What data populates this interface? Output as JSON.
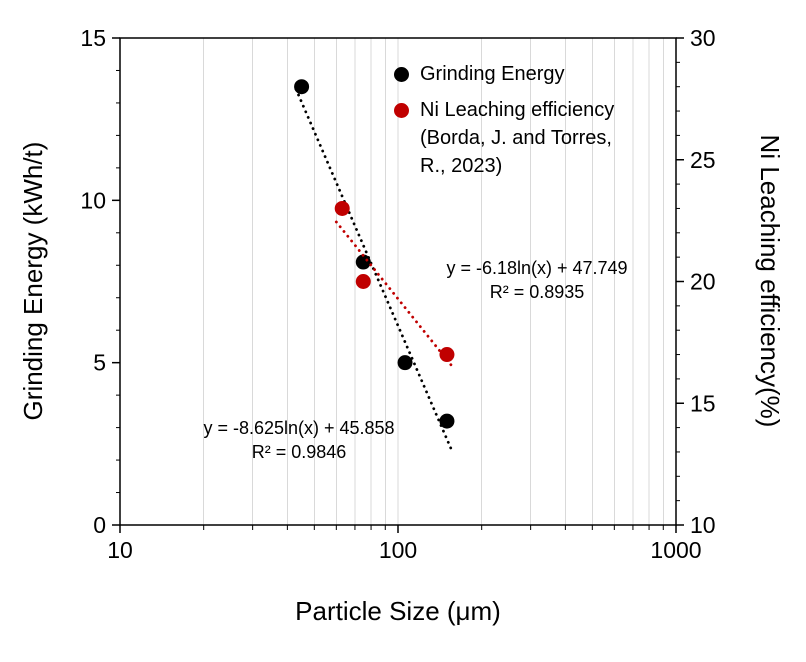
{
  "chart_data": {
    "type": "scatter",
    "x_axis": {
      "label": "Particle Size (μm)",
      "scale": "log",
      "min": 10,
      "max": 1000,
      "major_ticks": [
        10,
        100,
        1000
      ],
      "major_tick_labels": [
        "10",
        "100",
        "1000"
      ]
    },
    "y_axis_left": {
      "label": "Grinding Energy (kWh/t)",
      "min": 0,
      "max": 15,
      "major_ticks": [
        0,
        5,
        10,
        15
      ],
      "minor_step": 1
    },
    "y_axis_right": {
      "label": "Ni Leaching efficiency(%)",
      "min": 10,
      "max": 30,
      "major_ticks": [
        10,
        15,
        20,
        25,
        30
      ],
      "minor_step": 1
    },
    "grid": {
      "vertical_minor": true,
      "color": "#d9d9d9"
    },
    "series": [
      {
        "name": "Grinding Energy",
        "axis": "left",
        "color": "#000000",
        "marker": "circle",
        "points": [
          [
            45,
            13.5
          ],
          [
            75,
            8.1
          ],
          [
            106,
            5.0
          ],
          [
            150,
            3.2
          ]
        ],
        "trendline": {
          "type": "logarithmic",
          "a": -8.625,
          "b": 45.858,
          "x_start": 43,
          "x_end": 155,
          "equation": "y = -8.625ln(x) + 45.858",
          "r_squared": "R² = 0.9846"
        }
      },
      {
        "name": "Ni Leaching efficiency (Borda, J. and Torres, R., 2023)",
        "axis": "right",
        "color": "#c00000",
        "marker": "circle",
        "points": [
          [
            63,
            23
          ],
          [
            75,
            20
          ],
          [
            150,
            17
          ]
        ],
        "trendline": {
          "type": "logarithmic",
          "a": -6.18,
          "b": 47.749,
          "x_start": 60,
          "x_end": 158,
          "equation": "y = -6.18ln(x) + 47.749",
          "r_squared": "R² = 0.8935"
        }
      }
    ],
    "legend": {
      "position": "top-right-inside",
      "items": [
        {
          "label": "Grinding Energy",
          "color": "#000000"
        },
        {
          "label": "Ni Leaching efficiency (Borda, J. and Torres, R., 2023)",
          "color": "#c00000"
        }
      ]
    },
    "annotations": [
      {
        "line1": "y = -6.18ln(x) + 47.749",
        "line2": "R² = 0.8935"
      },
      {
        "line1": "y = -8.625ln(x) + 45.858",
        "line2": "R² = 0.9846"
      }
    ]
  }
}
